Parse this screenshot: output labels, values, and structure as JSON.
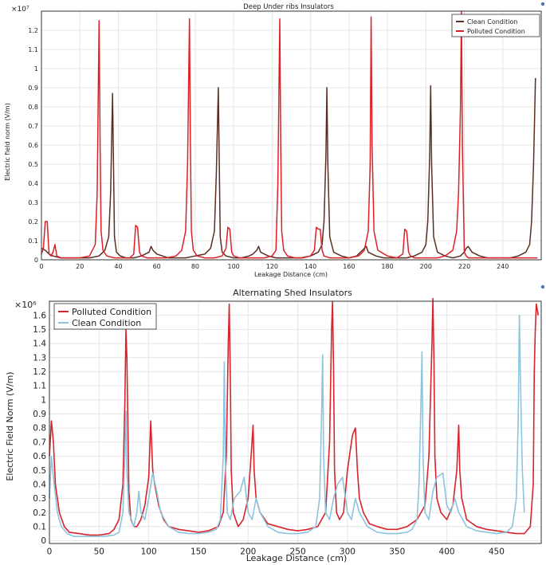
{
  "chart_data": [
    {
      "type": "line",
      "title": "Deep Under ribs Insulators",
      "xlabel": "Leakage Distance (cm)",
      "ylabel": "Electric field norm (V/m)",
      "y_multiplier": "×10⁷",
      "xlim": [
        0,
        260
      ],
      "ylim": [
        0,
        1.3
      ],
      "xticks": [
        "0",
        "20",
        "40",
        "60",
        "80",
        "100",
        "120",
        "140",
        "160",
        "180",
        "200",
        "220",
        "240"
      ],
      "yticks": [
        "0",
        "0.1",
        "0.2",
        "0.3",
        "0.4",
        "0.5",
        "0.6",
        "0.7",
        "0.8",
        "0.9",
        "1",
        "1.1",
        "1.2"
      ],
      "grid": true,
      "legend_position": "top-right",
      "series": [
        {
          "name": "Clean Condition",
          "color": "#5a2e22",
          "x": [
            0,
            2,
            4,
            6,
            10,
            15,
            20,
            25,
            30,
            33,
            35,
            36,
            37,
            37.5,
            38,
            39,
            41,
            44,
            48,
            52,
            56,
            57,
            58,
            60,
            63,
            66,
            70,
            75,
            80,
            85,
            88,
            90,
            91,
            92,
            92.5,
            93,
            94,
            96,
            100,
            104,
            108,
            110,
            112,
            113,
            114,
            118,
            122,
            126,
            130,
            135,
            140,
            144,
            146,
            147,
            148,
            148.5,
            149,
            150,
            152,
            156,
            160,
            164,
            166,
            168,
            169,
            170,
            174,
            178,
            182,
            186,
            190,
            194,
            198,
            200,
            201,
            202,
            202.5,
            203,
            204,
            206,
            210,
            214,
            218,
            220,
            221,
            222,
            224,
            228,
            232,
            236,
            240,
            244,
            248,
            252,
            254,
            255,
            256,
            257
          ],
          "values": [
            0.06,
            0.05,
            0.03,
            0.02,
            0.01,
            0.01,
            0.01,
            0.01,
            0.02,
            0.05,
            0.12,
            0.35,
            0.87,
            0.5,
            0.12,
            0.04,
            0.02,
            0.01,
            0.01,
            0.02,
            0.04,
            0.07,
            0.05,
            0.03,
            0.02,
            0.01,
            0.01,
            0.01,
            0.02,
            0.03,
            0.06,
            0.15,
            0.45,
            0.9,
            0.5,
            0.12,
            0.04,
            0.02,
            0.01,
            0.01,
            0.02,
            0.03,
            0.05,
            0.07,
            0.04,
            0.02,
            0.01,
            0.01,
            0.01,
            0.01,
            0.02,
            0.04,
            0.08,
            0.2,
            0.55,
            0.9,
            0.5,
            0.12,
            0.04,
            0.02,
            0.01,
            0.02,
            0.04,
            0.06,
            0.07,
            0.04,
            0.02,
            0.01,
            0.01,
            0.01,
            0.01,
            0.02,
            0.04,
            0.08,
            0.2,
            0.55,
            0.91,
            0.5,
            0.12,
            0.04,
            0.02,
            0.01,
            0.02,
            0.04,
            0.06,
            0.07,
            0.04,
            0.02,
            0.01,
            0.01,
            0.01,
            0.01,
            0.02,
            0.04,
            0.08,
            0.2,
            0.5,
            0.95
          ]
        },
        {
          "name": "Polluted Condition",
          "color": "#dd1f26",
          "x": [
            0,
            1,
            2,
            3,
            4,
            5,
            6,
            7,
            8,
            10,
            15,
            20,
            25,
            28,
            29,
            30,
            30.5,
            31,
            32,
            34,
            38,
            42,
            46,
            48,
            49,
            50,
            51,
            52,
            55,
            60,
            65,
            70,
            73,
            75,
            76,
            77,
            77.5,
            78,
            79,
            81,
            85,
            90,
            94,
            96,
            97,
            98,
            99,
            100,
            103,
            108,
            112,
            116,
            120,
            122,
            123,
            124,
            124.5,
            125,
            126,
            128,
            132,
            136,
            140,
            142,
            143,
            144,
            145,
            146,
            147,
            150,
            155,
            160,
            165,
            168,
            170,
            171,
            171.5,
            172,
            173,
            175,
            180,
            185,
            188,
            189,
            190,
            191,
            192,
            194,
            198,
            202,
            206,
            210,
            214,
            216,
            217,
            218,
            218.5,
            219,
            220,
            221,
            222,
            226,
            230,
            234,
            238,
            242,
            246,
            250,
            254,
            258
          ],
          "values": [
            0.03,
            0.06,
            0.2,
            0.2,
            0.03,
            0.02,
            0.04,
            0.08,
            0.02,
            0.01,
            0.01,
            0.01,
            0.02,
            0.08,
            0.35,
            1.25,
            0.6,
            0.15,
            0.05,
            0.02,
            0.01,
            0.01,
            0.01,
            0.03,
            0.18,
            0.17,
            0.04,
            0.02,
            0.01,
            0.01,
            0.01,
            0.02,
            0.05,
            0.15,
            0.5,
            1.26,
            0.6,
            0.15,
            0.05,
            0.02,
            0.01,
            0.01,
            0.02,
            0.06,
            0.17,
            0.16,
            0.04,
            0.02,
            0.01,
            0.01,
            0.01,
            0.01,
            0.02,
            0.05,
            0.4,
            1.26,
            0.6,
            0.15,
            0.05,
            0.02,
            0.01,
            0.01,
            0.02,
            0.05,
            0.17,
            0.16,
            0.16,
            0.05,
            0.02,
            0.01,
            0.01,
            0.01,
            0.02,
            0.05,
            0.15,
            0.5,
            1.27,
            0.6,
            0.15,
            0.05,
            0.02,
            0.01,
            0.03,
            0.16,
            0.15,
            0.04,
            0.02,
            0.01,
            0.01,
            0.01,
            0.01,
            0.02,
            0.05,
            0.15,
            0.35,
            0.8,
            1.3,
            0.6,
            0.04,
            0.02,
            0.01,
            0.01,
            0.01,
            0.01,
            0.01,
            0.01,
            0.01,
            0.01,
            0.01,
            0.01
          ]
        }
      ]
    },
    {
      "type": "line",
      "title": "Alternating Shed Insulators",
      "xlabel": "Leakage Distance (cm)",
      "ylabel": "Electric Field Norm (V/m)",
      "y_multiplier": "×10⁶",
      "xlim": [
        0,
        495
      ],
      "ylim": [
        -0.02,
        1.7
      ],
      "xticks": [
        "0",
        "50",
        "100",
        "150",
        "200",
        "250",
        "300",
        "350",
        "400",
        "450"
      ],
      "yticks": [
        "0",
        "0.1",
        "0.2",
        "0.3",
        "0.4",
        "0.5",
        "0.6",
        "0.7",
        "0.8",
        "0.9",
        "1",
        "1.1",
        "1.2",
        "1.3",
        "1.4",
        "1.5",
        "1.6"
      ],
      "grid": true,
      "legend_position": "top-left",
      "series": [
        {
          "name": "Polluted Condition",
          "color": "#d9232a",
          "x": [
            0,
            2,
            4,
            6,
            10,
            15,
            20,
            30,
            40,
            50,
            60,
            65,
            70,
            74,
            76,
            77,
            78,
            79,
            80,
            82,
            85,
            88,
            92,
            96,
            100,
            102,
            104,
            106,
            110,
            115,
            120,
            130,
            140,
            150,
            160,
            170,
            175,
            178,
            180,
            181,
            182,
            183,
            185,
            190,
            195,
            200,
            203,
            205,
            206,
            208,
            212,
            220,
            230,
            240,
            250,
            260,
            270,
            278,
            282,
            284,
            285,
            286,
            287,
            289,
            292,
            296,
            300,
            305,
            308,
            310,
            312,
            316,
            322,
            330,
            340,
            350,
            360,
            370,
            378,
            382,
            385,
            386,
            387,
            388,
            390,
            394,
            400,
            406,
            410,
            412,
            413,
            415,
            420,
            430,
            440,
            450,
            460,
            470,
            478,
            484,
            487,
            488,
            489,
            490,
            492
          ],
          "values": [
            0.6,
            0.85,
            0.7,
            0.4,
            0.2,
            0.1,
            0.06,
            0.05,
            0.04,
            0.04,
            0.05,
            0.08,
            0.15,
            0.4,
            1.0,
            1.5,
            1.3,
            0.8,
            0.35,
            0.15,
            0.1,
            0.1,
            0.15,
            0.25,
            0.45,
            0.85,
            0.5,
            0.4,
            0.25,
            0.15,
            0.1,
            0.08,
            0.07,
            0.06,
            0.07,
            0.1,
            0.2,
            0.6,
            1.4,
            1.68,
            1.2,
            0.5,
            0.2,
            0.1,
            0.15,
            0.3,
            0.6,
            0.82,
            0.5,
            0.3,
            0.2,
            0.12,
            0.1,
            0.08,
            0.07,
            0.08,
            0.1,
            0.2,
            0.7,
            1.5,
            1.7,
            1.2,
            0.5,
            0.2,
            0.15,
            0.2,
            0.5,
            0.75,
            0.8,
            0.5,
            0.3,
            0.2,
            0.12,
            0.1,
            0.08,
            0.08,
            0.1,
            0.15,
            0.25,
            0.6,
            1.4,
            1.72,
            1.3,
            0.6,
            0.3,
            0.2,
            0.15,
            0.25,
            0.5,
            0.82,
            0.5,
            0.3,
            0.15,
            0.1,
            0.08,
            0.07,
            0.06,
            0.05,
            0.05,
            0.1,
            0.4,
            1.2,
            1.48,
            1.68,
            1.6
          ]
        },
        {
          "name": "Clean Condition",
          "color": "#8cc4de",
          "x": [
            0,
            2,
            4,
            8,
            12,
            18,
            25,
            35,
            45,
            55,
            65,
            70,
            74,
            76,
            77,
            78,
            80,
            85,
            88,
            90,
            92,
            96,
            100,
            104,
            108,
            112,
            120,
            130,
            140,
            150,
            160,
            168,
            172,
            175,
            176,
            177,
            179,
            182,
            186,
            192,
            196,
            200,
            204,
            208,
            212,
            220,
            230,
            240,
            250,
            260,
            268,
            272,
            274,
            275,
            276,
            278,
            282,
            286,
            290,
            295,
            300,
            304,
            308,
            312,
            320,
            330,
            340,
            350,
            360,
            365,
            370,
            372,
            374,
            375,
            376,
            378,
            382,
            386,
            390,
            396,
            400,
            404,
            408,
            412,
            420,
            430,
            440,
            450,
            460,
            466,
            470,
            472,
            473,
            474,
            476,
            478
          ],
          "values": [
            0.3,
            0.6,
            0.45,
            0.2,
            0.1,
            0.05,
            0.03,
            0.03,
            0.03,
            0.03,
            0.04,
            0.06,
            0.2,
            0.6,
            0.92,
            0.5,
            0.2,
            0.1,
            0.2,
            0.35,
            0.2,
            0.15,
            0.3,
            0.48,
            0.35,
            0.2,
            0.1,
            0.06,
            0.05,
            0.05,
            0.06,
            0.08,
            0.15,
            0.6,
            1.27,
            0.6,
            0.2,
            0.15,
            0.3,
            0.35,
            0.45,
            0.2,
            0.15,
            0.3,
            0.2,
            0.1,
            0.06,
            0.05,
            0.05,
            0.06,
            0.1,
            0.3,
            0.9,
            1.32,
            0.6,
            0.2,
            0.15,
            0.3,
            0.4,
            0.45,
            0.2,
            0.15,
            0.3,
            0.2,
            0.1,
            0.06,
            0.05,
            0.05,
            0.06,
            0.08,
            0.15,
            0.4,
            1.0,
            1.34,
            0.6,
            0.2,
            0.15,
            0.35,
            0.45,
            0.48,
            0.25,
            0.2,
            0.3,
            0.2,
            0.1,
            0.07,
            0.06,
            0.05,
            0.06,
            0.1,
            0.3,
            0.9,
            1.6,
            1.2,
            0.5,
            0.2
          ]
        }
      ]
    }
  ]
}
